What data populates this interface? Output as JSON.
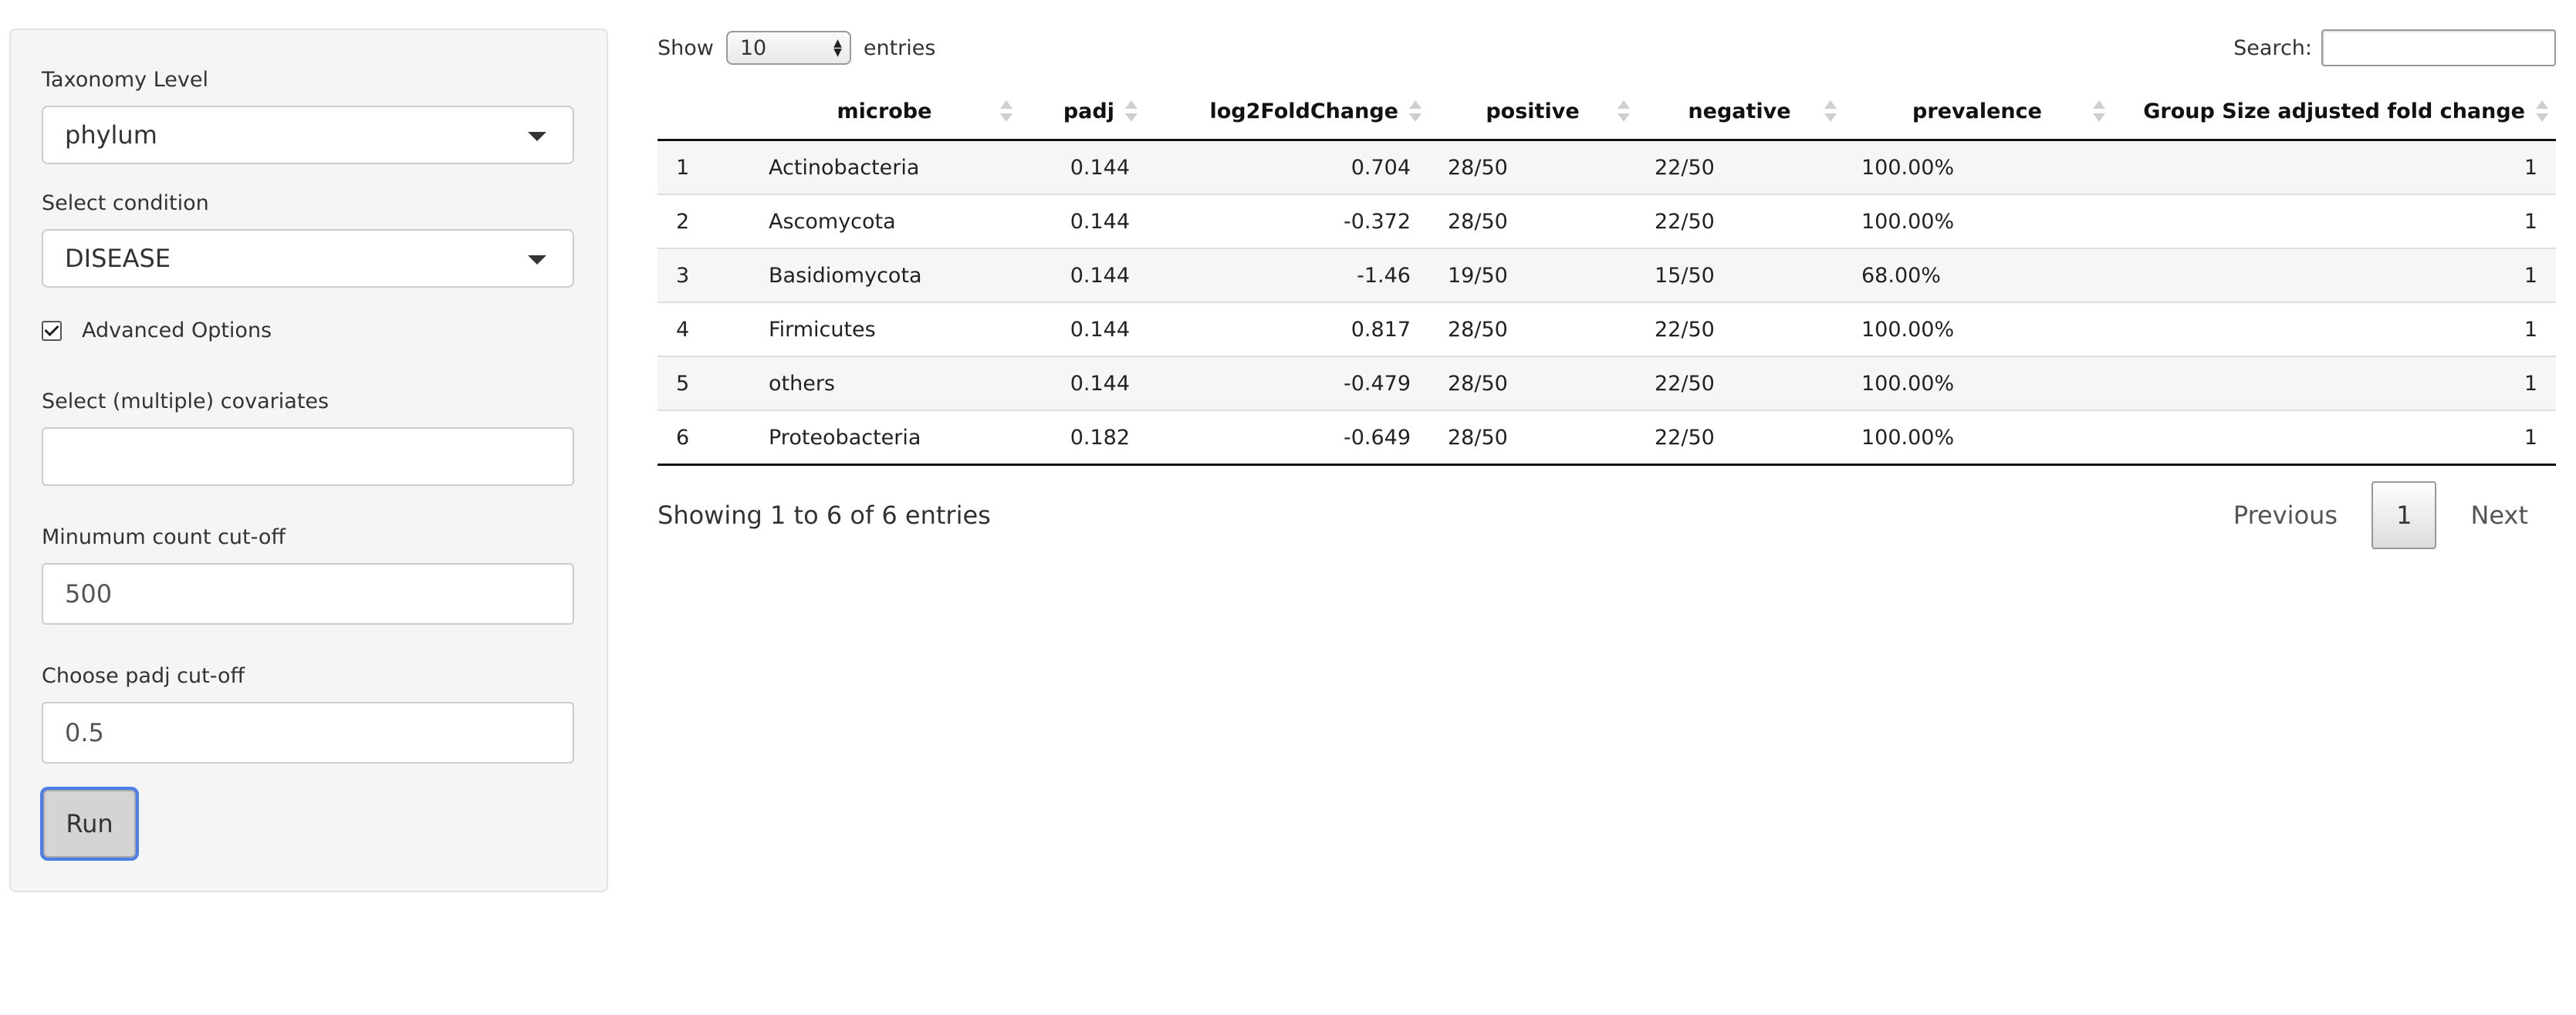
{
  "sidebar": {
    "taxonomy_label": "Taxonomy Level",
    "taxonomy_value": "phylum",
    "condition_label": "Select condition",
    "condition_value": "DISEASE",
    "advanced_label": "Advanced Options",
    "advanced_checked": true,
    "covariates_label": "Select (multiple) covariates",
    "covariates_value": "",
    "min_count_label": "Minumum count cut-off",
    "min_count_value": "500",
    "padj_label": "Choose padj cut-off",
    "padj_value": "0.5",
    "run_label": "Run"
  },
  "table_controls": {
    "show_label": "Show",
    "entries_value": "10",
    "entries_label": "entries",
    "search_label": "Search:",
    "search_value": ""
  },
  "table": {
    "columns": [
      "",
      "microbe",
      "padj",
      "log2FoldChange",
      "positive",
      "negative",
      "prevalence",
      "Group Size adjusted fold change"
    ],
    "rows": [
      [
        "1",
        "Actinobacteria",
        "0.144",
        "0.704",
        "28/50",
        "22/50",
        "100.00%",
        "1"
      ],
      [
        "2",
        "Ascomycota",
        "0.144",
        "-0.372",
        "28/50",
        "22/50",
        "100.00%",
        "1"
      ],
      [
        "3",
        "Basidiomycota",
        "0.144",
        "-1.46",
        "19/50",
        "15/50",
        "68.00%",
        "1"
      ],
      [
        "4",
        "Firmicutes",
        "0.144",
        "0.817",
        "28/50",
        "22/50",
        "100.00%",
        "1"
      ],
      [
        "5",
        "others",
        "0.144",
        "-0.479",
        "28/50",
        "22/50",
        "100.00%",
        "1"
      ],
      [
        "6",
        "Proteobacteria",
        "0.182",
        "-0.649",
        "28/50",
        "22/50",
        "100.00%",
        "1"
      ]
    ]
  },
  "footer": {
    "info": "Showing 1 to 6 of 6 entries",
    "previous_label": "Previous",
    "current_page": "1",
    "next_label": "Next"
  },
  "colors": {
    "focus_ring": "#4a7ee8",
    "sidebar_bg": "#f5f5f5",
    "stripe_bg": "#f6f6f6"
  }
}
